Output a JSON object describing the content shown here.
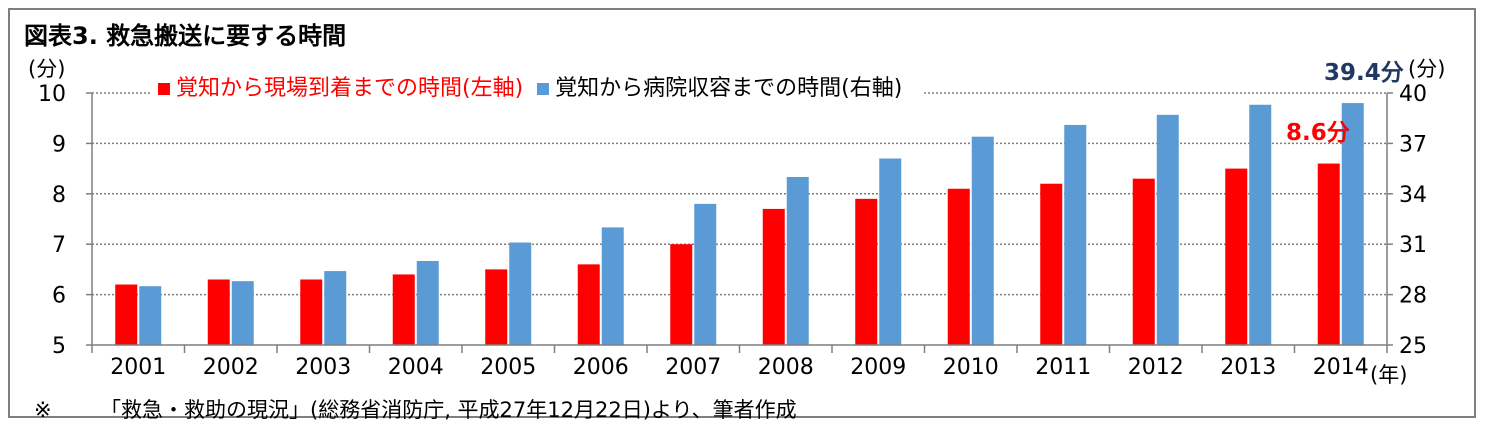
{
  "title": "図表3.  救急搬送に要する時間",
  "footnote": {
    "mark": "※",
    "text": "「救急・救助の現況」(総務省消防庁, 平成27年12月22日)より、筆者作成"
  },
  "colors": {
    "series_left": "#ff0000",
    "series_right": "#5b9bd5",
    "axis_text": "#000000",
    "annotation_left": "#ff0000",
    "annotation_right": "#1f3864",
    "grid": "#7f7f7f",
    "frame": "#7f7f7f"
  },
  "chart_data": {
    "type": "bar",
    "title": "図表3.  救急搬送に要する時間",
    "categories": [
      "2001",
      "2002",
      "2003",
      "2004",
      "2005",
      "2006",
      "2007",
      "2008",
      "2009",
      "2010",
      "2011",
      "2012",
      "2013",
      "2014"
    ],
    "series": [
      {
        "name": "覚知から現場到着までの時間(左軸)",
        "axis": "left",
        "values": [
          6.2,
          6.3,
          6.3,
          6.4,
          6.5,
          6.6,
          7.0,
          7.7,
          7.9,
          8.1,
          8.2,
          8.3,
          8.5,
          8.6
        ]
      },
      {
        "name": "覚知から病院収容までの時間(右軸)",
        "axis": "right",
        "values": [
          28.5,
          28.8,
          29.4,
          30.0,
          31.1,
          32.0,
          33.4,
          35.0,
          36.1,
          37.4,
          38.1,
          38.7,
          39.3,
          39.4
        ]
      }
    ],
    "y_left": {
      "unit_label": "(分)",
      "range": [
        5,
        10
      ],
      "ticks": [
        5,
        6,
        7,
        8,
        9,
        10
      ]
    },
    "y_right": {
      "unit_label": "(分)",
      "range": [
        25,
        40
      ],
      "ticks": [
        25,
        28,
        31,
        34,
        37,
        40
      ]
    },
    "x_unit_label": "(年)",
    "annotations": [
      {
        "series": "right",
        "category": "2014",
        "text": "39.4分"
      },
      {
        "series": "left",
        "category": "2014",
        "text": "8.6分"
      }
    ],
    "grid": true,
    "legend_position": "top"
  }
}
